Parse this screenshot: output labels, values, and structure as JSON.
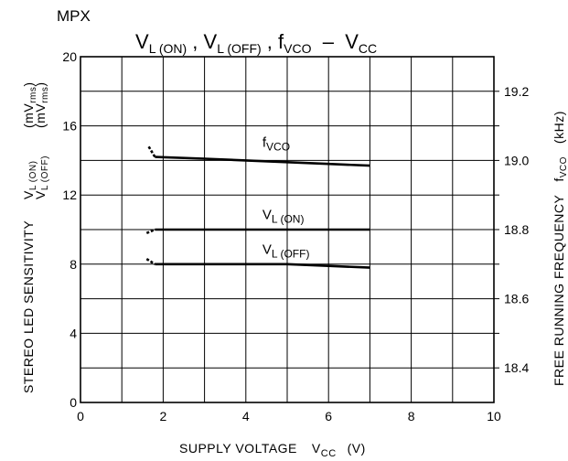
{
  "header": {
    "section_label": "MPX"
  },
  "chart_data": {
    "type": "line",
    "title": "V_L(ON) , V_L(OFF) , f_VCO − V_CC",
    "title_parts": {
      "v1": "V",
      "v1_sub": "L (ON)",
      "sep1": " , ",
      "v2": "V",
      "v2_sub": "L (OFF)",
      "sep2": " , ",
      "f": "f",
      "f_sub": "VCO",
      "dash": "  –  ",
      "vcc": "V",
      "vcc_sub": "CC"
    },
    "xlabel": "SUPPLY VOLTAGE  V_CC  (V)",
    "xlabel_parts": {
      "main": "SUPPLY VOLTAGE",
      "sym": "V",
      "sym_sub": "CC",
      "unit": "(V)"
    },
    "ylabel_left": "STEREO LED SENSITIVITY  V_L(ON) V_L(OFF)  (mV_rms) (mV_rms)",
    "ylabel_left_parts": {
      "main": "STEREO  LED SENSITIVITY",
      "line1_sym": "V",
      "line1_sub": "L (ON)",
      "line2_sym": "V",
      "line2_sub": "L (OFF)",
      "unit1": "(mV",
      "unit1_sub": "rms",
      "unit1_end": ")",
      "unit2": "(mV",
      "unit2_sub": "rms",
      "unit2_end": ")"
    },
    "ylabel_right": "FREE RUNNING FREQUENCY  f_VCO  (kHz)",
    "ylabel_right_parts": {
      "main": "FREE RUNNING FREQUENCY",
      "sym": "f",
      "sym_sub": "VCO",
      "unit": "(kHz)"
    },
    "xlim": [
      0,
      10
    ],
    "ylim_left": [
      0,
      20
    ],
    "ylim_right": [
      18.3,
      19.3
    ],
    "x_ticks": [
      0,
      2,
      4,
      6,
      8,
      10
    ],
    "y_ticks_left": [
      0,
      4,
      8,
      12,
      16,
      20
    ],
    "y_ticks_right": [
      18.4,
      18.6,
      18.8,
      19.0,
      19.2
    ],
    "x_tick_labels": [
      "0",
      "2",
      "4",
      "6",
      "8",
      "10"
    ],
    "y_tick_labels_left": [
      "0",
      "4",
      "8",
      "12",
      "16",
      "20"
    ],
    "y_tick_labels_right": [
      "18.4",
      "18.6",
      "18.8",
      "19.0",
      "19.2"
    ],
    "grid": true,
    "series": [
      {
        "name": "f_VCO",
        "label_main": "f",
        "label_sub": "VCO",
        "axis": "right",
        "x": [
          1.8,
          3.0,
          4.0,
          5.0,
          6.0,
          7.0
        ],
        "y": [
          19.01,
          19.005,
          19.0,
          18.995,
          18.99,
          18.985
        ],
        "start_hook": {
          "x": [
            1.65,
            1.8
          ],
          "y": [
            19.04,
            19.01
          ]
        },
        "label_at": {
          "x": 4.4,
          "y": 19.04
        }
      },
      {
        "name": "V_L(ON)",
        "label_main": "V",
        "label_sub": "L (ON)",
        "axis": "left",
        "x": [
          1.8,
          3.0,
          4.0,
          5.0,
          6.0,
          7.0
        ],
        "y": [
          10.0,
          10.0,
          10.0,
          10.0,
          10.0,
          10.0
        ],
        "start_hook": {
          "x": [
            1.6,
            1.8
          ],
          "y": [
            9.8,
            10.0
          ]
        },
        "label_at": {
          "x": 4.4,
          "y": 10.6
        }
      },
      {
        "name": "V_L(OFF)",
        "label_main": "V",
        "label_sub": "L (OFF)",
        "axis": "left",
        "x": [
          1.8,
          3.0,
          4.0,
          5.0,
          6.0,
          7.0
        ],
        "y": [
          8.0,
          8.0,
          8.0,
          8.0,
          7.9,
          7.8
        ],
        "start_hook": {
          "x": [
            1.6,
            1.8
          ],
          "y": [
            8.3,
            8.0
          ]
        },
        "label_at": {
          "x": 4.4,
          "y": 8.6
        }
      }
    ]
  }
}
